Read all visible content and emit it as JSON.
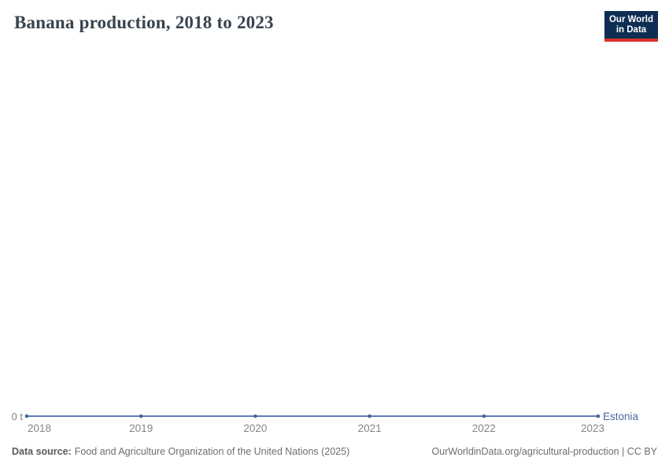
{
  "header": {
    "title": "Banana production, 2018 to 2023",
    "logo": {
      "line1": "Our World",
      "line2": "in Data"
    }
  },
  "chart_data": {
    "type": "line",
    "title": "Banana production, 2018 to 2023",
    "x": [
      2018,
      2019,
      2020,
      2021,
      2022,
      2023
    ],
    "series": [
      {
        "name": "Estonia",
        "values": [
          0,
          0,
          0,
          0,
          0,
          0
        ]
      }
    ],
    "unit": "t",
    "y_zero_label": "0 t",
    "xlim": [
      2018,
      2023
    ],
    "ylim": [
      0,
      0
    ],
    "grid": false,
    "legend_position": "end-of-line",
    "line_color": "#5d7bb4",
    "marker_color": "#47649e",
    "entity_label_color": "#4c6a9c"
  },
  "footer": {
    "source_label": "Data source:",
    "source_value": "Food and Agriculture Organization of the United Nations (2025)",
    "rights": "OurWorldinData.org/agricultural-production | CC BY"
  }
}
